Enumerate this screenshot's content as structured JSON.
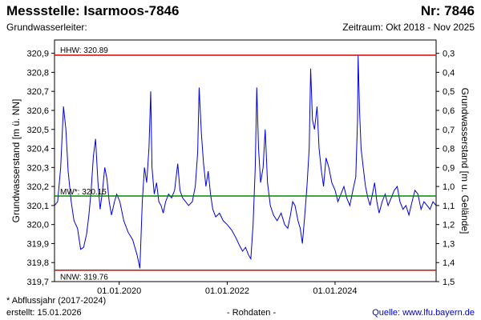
{
  "header": {
    "title": "Messstelle: Isarmoos-7846",
    "nr": "Nr: 7846",
    "aquifer": "Grundwasserleiter:",
    "period": "Zeitraum: Okt 2018 - Nov 2025"
  },
  "footer": {
    "footnote": "* Abflussjahr (2017-2024)",
    "created": "erstellt:  15.01.2026",
    "raw": "- Rohdaten -",
    "source": "Quelle:  www.lfu.bayern.de"
  },
  "colors": {
    "series": "#0000dd",
    "extreme_lines": "#dd0000",
    "mean_line": "#008800"
  },
  "chart_data": {
    "type": "line",
    "xlabel": "",
    "ylabel": "Grundwasserstand [m ü. NN]",
    "ylabel_right": "Grundwasserstand [m u. Gelände]",
    "ylim": [
      319.7,
      320.97
    ],
    "xlim": [
      "2018-10-20",
      "2025-11-15"
    ],
    "x_ticks": [
      "2020-01-01",
      "2022-01-01",
      "2024-01-01"
    ],
    "x_tick_labels": [
      "01.01.2020",
      "01.01.2022",
      "01.01.2024"
    ],
    "y_ticks": [
      319.7,
      319.8,
      319.9,
      320.0,
      320.1,
      320.2,
      320.3,
      320.4,
      320.5,
      320.6,
      320.7,
      320.8,
      320.9
    ],
    "y_tick_labels": [
      "319,7",
      "319,8",
      "319,9",
      "320,0",
      "320,1",
      "320,2",
      "320,3",
      "320,4",
      "320,5",
      "320,6",
      "320,7",
      "320,8",
      "320,9"
    ],
    "y_right_ticks": [
      0.3,
      0.4,
      0.5,
      0.6,
      0.7,
      0.8,
      0.9,
      1.0,
      1.1,
      1.2,
      1.3,
      1.4,
      1.5
    ],
    "y_right_tick_labels": [
      "0,3",
      "0,4",
      "0,5",
      "0,6",
      "0,7",
      "0,8",
      "0,9",
      "1,0",
      "1,1",
      "1,2",
      "1,3",
      "1,4",
      "1,5"
    ],
    "grid": false,
    "reference_lines": [
      {
        "label": "HHW: 320.89",
        "value": 320.89,
        "kind": "extreme"
      },
      {
        "label": "MW*: 320.15",
        "value": 320.15,
        "kind": "mean"
      },
      {
        "label": "NNW: 319.76",
        "value": 319.76,
        "kind": "extreme"
      }
    ],
    "series": [
      {
        "points": [
          [
            "2018-10-20",
            320.1
          ],
          [
            "2018-11-10",
            320.12
          ],
          [
            "2018-12-01",
            320.3
          ],
          [
            "2018-12-20",
            320.62
          ],
          [
            "2019-01-05",
            320.5
          ],
          [
            "2019-01-20",
            320.28
          ],
          [
            "2019-02-10",
            320.12
          ],
          [
            "2019-03-01",
            320.02
          ],
          [
            "2019-03-25",
            319.98
          ],
          [
            "2019-04-15",
            319.87
          ],
          [
            "2019-05-05",
            319.88
          ],
          [
            "2019-05-25",
            319.95
          ],
          [
            "2019-06-10",
            320.05
          ],
          [
            "2019-06-25",
            320.18
          ],
          [
            "2019-07-10",
            320.36
          ],
          [
            "2019-07-25",
            320.45
          ],
          [
            "2019-08-10",
            320.22
          ],
          [
            "2019-08-25",
            320.08
          ],
          [
            "2019-09-10",
            320.18
          ],
          [
            "2019-09-25",
            320.3
          ],
          [
            "2019-10-10",
            320.24
          ],
          [
            "2019-10-25",
            320.12
          ],
          [
            "2019-11-10",
            320.05
          ],
          [
            "2019-11-30",
            320.12
          ],
          [
            "2019-12-15",
            320.16
          ],
          [
            "2020-01-05",
            320.12
          ],
          [
            "2020-02-01",
            320.02
          ],
          [
            "2020-03-01",
            319.96
          ],
          [
            "2020-04-01",
            319.92
          ],
          [
            "2020-05-01",
            319.84
          ],
          [
            "2020-05-20",
            319.77
          ],
          [
            "2020-06-05",
            320.12
          ],
          [
            "2020-06-20",
            320.3
          ],
          [
            "2020-07-05",
            320.22
          ],
          [
            "2020-07-20",
            320.4
          ],
          [
            "2020-08-01",
            320.7
          ],
          [
            "2020-08-10",
            320.3
          ],
          [
            "2020-08-25",
            320.16
          ],
          [
            "2020-09-10",
            320.22
          ],
          [
            "2020-09-25",
            320.12
          ],
          [
            "2020-10-10",
            320.1
          ],
          [
            "2020-10-25",
            320.06
          ],
          [
            "2020-11-10",
            320.12
          ],
          [
            "2020-11-30",
            320.16
          ],
          [
            "2020-12-20",
            320.14
          ],
          [
            "2021-01-10",
            320.18
          ],
          [
            "2021-01-31",
            320.32
          ],
          [
            "2021-02-15",
            320.18
          ],
          [
            "2021-03-05",
            320.14
          ],
          [
            "2021-03-25",
            320.12
          ],
          [
            "2021-04-15",
            320.1
          ],
          [
            "2021-05-10",
            320.12
          ],
          [
            "2021-05-30",
            320.2
          ],
          [
            "2021-06-15",
            320.38
          ],
          [
            "2021-06-25",
            320.72
          ],
          [
            "2021-07-10",
            320.48
          ],
          [
            "2021-07-25",
            320.32
          ],
          [
            "2021-08-10",
            320.2
          ],
          [
            "2021-08-25",
            320.28
          ],
          [
            "2021-09-10",
            320.16
          ],
          [
            "2021-09-25",
            320.08
          ],
          [
            "2021-10-15",
            320.04
          ],
          [
            "2021-11-10",
            320.06
          ],
          [
            "2021-12-05",
            320.02
          ],
          [
            "2022-01-01",
            320.0
          ],
          [
            "2022-02-01",
            319.97
          ],
          [
            "2022-03-01",
            319.93
          ],
          [
            "2022-03-25",
            319.89
          ],
          [
            "2022-04-15",
            319.86
          ],
          [
            "2022-05-05",
            319.88
          ],
          [
            "2022-05-25",
            319.84
          ],
          [
            "2022-06-10",
            319.82
          ],
          [
            "2022-06-25",
            320.0
          ],
          [
            "2022-07-10",
            320.3
          ],
          [
            "2022-07-20",
            320.72
          ],
          [
            "2022-08-01",
            320.4
          ],
          [
            "2022-08-15",
            320.22
          ],
          [
            "2022-09-01",
            320.3
          ],
          [
            "2022-09-15",
            320.5
          ],
          [
            "2022-10-01",
            320.22
          ],
          [
            "2022-10-20",
            320.1
          ],
          [
            "2022-11-10",
            320.05
          ],
          [
            "2022-12-05",
            320.02
          ],
          [
            "2023-01-01",
            320.06
          ],
          [
            "2023-01-25",
            320.0
          ],
          [
            "2023-02-15",
            319.98
          ],
          [
            "2023-03-05",
            320.05
          ],
          [
            "2023-03-20",
            320.12
          ],
          [
            "2023-04-05",
            320.1
          ],
          [
            "2023-04-25",
            320.02
          ],
          [
            "2023-05-10",
            319.98
          ],
          [
            "2023-05-25",
            319.9
          ],
          [
            "2023-06-10",
            320.05
          ],
          [
            "2023-06-25",
            320.2
          ],
          [
            "2023-07-10",
            320.4
          ],
          [
            "2023-07-20",
            320.82
          ],
          [
            "2023-08-01",
            320.55
          ],
          [
            "2023-08-15",
            320.5
          ],
          [
            "2023-09-01",
            320.62
          ],
          [
            "2023-09-15",
            320.4
          ],
          [
            "2023-10-01",
            320.28
          ],
          [
            "2023-10-15",
            320.2
          ],
          [
            "2023-11-01",
            320.35
          ],
          [
            "2023-11-20",
            320.3
          ],
          [
            "2023-12-10",
            320.22
          ],
          [
            "2024-01-01",
            320.18
          ],
          [
            "2024-01-20",
            320.12
          ],
          [
            "2024-02-10",
            320.16
          ],
          [
            "2024-03-01",
            320.2
          ],
          [
            "2024-03-20",
            320.14
          ],
          [
            "2024-04-10",
            320.1
          ],
          [
            "2024-05-01",
            320.18
          ],
          [
            "2024-05-20",
            320.25
          ],
          [
            "2024-06-01",
            320.55
          ],
          [
            "2024-06-05",
            320.89
          ],
          [
            "2024-06-15",
            320.6
          ],
          [
            "2024-06-25",
            320.4
          ],
          [
            "2024-07-10",
            320.3
          ],
          [
            "2024-07-25",
            320.2
          ],
          [
            "2024-08-10",
            320.14
          ],
          [
            "2024-08-25",
            320.1
          ],
          [
            "2024-09-10",
            320.16
          ],
          [
            "2024-09-25",
            320.22
          ],
          [
            "2024-10-10",
            320.12
          ],
          [
            "2024-10-25",
            320.06
          ],
          [
            "2024-11-15",
            320.12
          ],
          [
            "2024-12-05",
            320.16
          ],
          [
            "2024-12-25",
            320.1
          ],
          [
            "2025-01-15",
            320.14
          ],
          [
            "2025-02-05",
            320.18
          ],
          [
            "2025-02-25",
            320.2
          ],
          [
            "2025-03-15",
            320.12
          ],
          [
            "2025-04-05",
            320.08
          ],
          [
            "2025-04-25",
            320.1
          ],
          [
            "2025-05-15",
            320.05
          ],
          [
            "2025-06-05",
            320.12
          ],
          [
            "2025-06-25",
            320.18
          ],
          [
            "2025-07-15",
            320.16
          ],
          [
            "2025-08-05",
            320.08
          ],
          [
            "2025-08-25",
            320.12
          ],
          [
            "2025-09-15",
            320.1
          ],
          [
            "2025-10-05",
            320.08
          ],
          [
            "2025-10-25",
            320.12
          ],
          [
            "2025-11-15",
            320.1
          ]
        ]
      }
    ]
  }
}
